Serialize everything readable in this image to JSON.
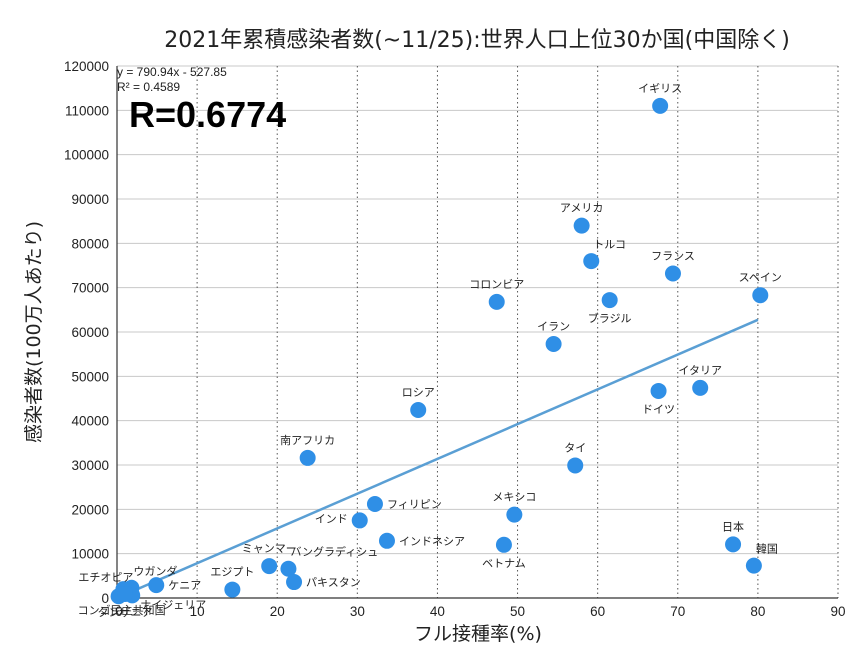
{
  "chart_data": {
    "type": "scatter",
    "title": "2021年累積感染者数(~11/25):世界人口上位30か国(中国除く)",
    "xlabel": "フル接種率(%)",
    "ylabel": "感染者数(100万人あたり)",
    "xlim": [
      0,
      90
    ],
    "ylim": [
      0,
      120000
    ],
    "x_ticks": [
      "0",
      "10",
      "20",
      "30",
      "40",
      "50",
      "60",
      "70",
      "80",
      "90"
    ],
    "y_ticks": [
      "0",
      "10000",
      "20000",
      "30000",
      "40000",
      "50000",
      "60000",
      "70000",
      "80000",
      "90000",
      "100000",
      "110000",
      "120000"
    ],
    "grid": {
      "x": "dotted",
      "y": "solid"
    },
    "marker_color": "#2f8fe6",
    "trend_color": "#5a9fd4",
    "trendline": {
      "equation": "y = 790.94x - 527.85",
      "r2": "R² = 0.4589",
      "x_range": [
        0,
        80
      ]
    },
    "r_label": "R=0.6774",
    "points": [
      {
        "label": "イギリス",
        "x": 67.8,
        "y": 111000,
        "lpos": "above"
      },
      {
        "label": "アメリカ",
        "x": 58.0,
        "y": 84000,
        "lpos": "above"
      },
      {
        "label": "トルコ",
        "x": 59.2,
        "y": 76000,
        "lpos": "above-right"
      },
      {
        "label": "フランス",
        "x": 69.4,
        "y": 73200,
        "lpos": "above"
      },
      {
        "label": "スペイン",
        "x": 80.3,
        "y": 68300,
        "lpos": "above"
      },
      {
        "label": "コロンビア",
        "x": 47.4,
        "y": 66800,
        "lpos": "above"
      },
      {
        "label": "ブラジル",
        "x": 61.5,
        "y": 67200,
        "lpos": "below"
      },
      {
        "label": "イラン",
        "x": 54.5,
        "y": 57300,
        "lpos": "above"
      },
      {
        "label": "イタリア",
        "x": 72.8,
        "y": 47400,
        "lpos": "above"
      },
      {
        "label": "ドイツ",
        "x": 67.6,
        "y": 46700,
        "lpos": "below"
      },
      {
        "label": "ロシア",
        "x": 37.6,
        "y": 42400,
        "lpos": "above"
      },
      {
        "label": "南アフリカ",
        "x": 23.8,
        "y": 31600,
        "lpos": "above"
      },
      {
        "label": "タイ",
        "x": 57.2,
        "y": 29900,
        "lpos": "above"
      },
      {
        "label": "フィリピン",
        "x": 32.2,
        "y": 21200,
        "lpos": "right"
      },
      {
        "label": "メキシコ",
        "x": 49.6,
        "y": 18800,
        "lpos": "above"
      },
      {
        "label": "インド",
        "x": 30.3,
        "y": 17500,
        "lpos": "left"
      },
      {
        "label": "インドネシア",
        "x": 33.7,
        "y": 12900,
        "lpos": "right"
      },
      {
        "label": "ベトナム",
        "x": 48.3,
        "y": 12000,
        "lpos": "below"
      },
      {
        "label": "日本",
        "x": 76.9,
        "y": 12100,
        "lpos": "above"
      },
      {
        "label": "韓国",
        "x": 79.5,
        "y": 7300,
        "lpos": "above-right"
      },
      {
        "label": "ミャンマー",
        "x": 19.0,
        "y": 7200,
        "lpos": "above"
      },
      {
        "label": "バングラディシュ",
        "x": 21.4,
        "y": 6600,
        "lpos": "above-right"
      },
      {
        "label": "パキスタン",
        "x": 22.1,
        "y": 3600,
        "lpos": "right"
      },
      {
        "label": "エジプト",
        "x": 14.4,
        "y": 1900,
        "lpos": "above"
      },
      {
        "label": "ケニア",
        "x": 4.9,
        "y": 2900,
        "lpos": "right"
      },
      {
        "label": "ウガンダ",
        "x": 1.8,
        "y": 2300,
        "lpos": "above-right"
      },
      {
        "label": "エチオピア",
        "x": 0.8,
        "y": 2000,
        "lpos": "above-left"
      },
      {
        "label": "ナイジェリア",
        "x": 1.9,
        "y": 600,
        "lpos": "right-low"
      },
      {
        "label": "コンゴ民主共和国",
        "x": 0.2,
        "y": 400,
        "lpos": "below-left"
      },
      {
        "label": "タンザニア",
        "x": 1.0,
        "y": 900,
        "lpos": "below"
      }
    ]
  }
}
